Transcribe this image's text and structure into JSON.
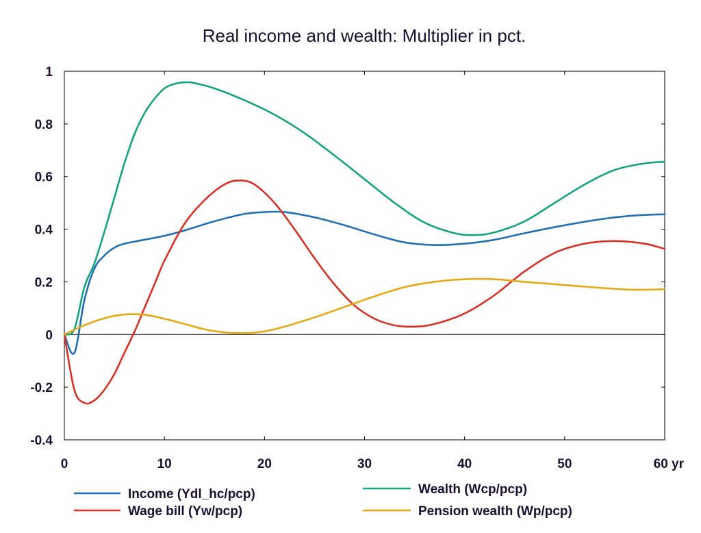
{
  "chart_data": {
    "type": "line",
    "title": "Real income and wealth: Multiplier in pct.",
    "xlabel": "",
    "ylabel": "",
    "xlim": [
      0,
      60
    ],
    "ylim": [
      -0.4,
      1.0
    ],
    "x_ticks": [
      0,
      10,
      20,
      30,
      40,
      50,
      60
    ],
    "x_tick_labels": [
      "0",
      "10",
      "20",
      "30",
      "40",
      "50",
      "60 yr"
    ],
    "y_ticks": [
      -0.4,
      -0.2,
      0,
      0.2,
      0.4,
      0.6,
      0.8,
      1.0
    ],
    "y_tick_labels": [
      "-0.4",
      "-0.2",
      "0",
      "0.2",
      "0.4",
      "0.6",
      "0.8",
      "1"
    ],
    "grid": false,
    "zero_line": true,
    "legend_position": "bottom",
    "series": [
      {
        "name": "Income (Ydl_hc/pcp)",
        "color": "#1f6fb2",
        "points": [
          [
            0,
            0
          ],
          [
            1,
            -0.07
          ],
          [
            2,
            0.13
          ],
          [
            3,
            0.25
          ],
          [
            4,
            0.3
          ],
          [
            5,
            0.33
          ],
          [
            6,
            0.345
          ],
          [
            8,
            0.36
          ],
          [
            10,
            0.375
          ],
          [
            12,
            0.395
          ],
          [
            15,
            0.43
          ],
          [
            18,
            0.458
          ],
          [
            20,
            0.465
          ],
          [
            22,
            0.465
          ],
          [
            25,
            0.445
          ],
          [
            28,
            0.415
          ],
          [
            31,
            0.38
          ],
          [
            34,
            0.35
          ],
          [
            37,
            0.34
          ],
          [
            40,
            0.345
          ],
          [
            43,
            0.36
          ],
          [
            46,
            0.385
          ],
          [
            50,
            0.415
          ],
          [
            54,
            0.44
          ],
          [
            57,
            0.452
          ],
          [
            60,
            0.457
          ]
        ]
      },
      {
        "name": "Wage bill (Yw/pcp)",
        "color": "#d93025",
        "points": [
          [
            0,
            0
          ],
          [
            1,
            -0.21
          ],
          [
            2,
            -0.26
          ],
          [
            3,
            -0.25
          ],
          [
            4,
            -0.21
          ],
          [
            5,
            -0.15
          ],
          [
            6,
            -0.07
          ],
          [
            7,
            0.01
          ],
          [
            8,
            0.1
          ],
          [
            9,
            0.19
          ],
          [
            10,
            0.28
          ],
          [
            12,
            0.42
          ],
          [
            14,
            0.51
          ],
          [
            16,
            0.57
          ],
          [
            17.5,
            0.585
          ],
          [
            19,
            0.57
          ],
          [
            21,
            0.5
          ],
          [
            23,
            0.4
          ],
          [
            25,
            0.29
          ],
          [
            27,
            0.19
          ],
          [
            29,
            0.11
          ],
          [
            31,
            0.06
          ],
          [
            33,
            0.035
          ],
          [
            35,
            0.03
          ],
          [
            37,
            0.04
          ],
          [
            40,
            0.08
          ],
          [
            43,
            0.15
          ],
          [
            46,
            0.24
          ],
          [
            49,
            0.31
          ],
          [
            52,
            0.345
          ],
          [
            55,
            0.355
          ],
          [
            58,
            0.345
          ],
          [
            60,
            0.325
          ]
        ]
      },
      {
        "name": "Wealth (Wcp/pcp)",
        "color": "#14a37f",
        "points": [
          [
            0,
            0
          ],
          [
            1,
            0.02
          ],
          [
            2,
            0.18
          ],
          [
            3,
            0.27
          ],
          [
            4,
            0.39
          ],
          [
            5,
            0.52
          ],
          [
            6,
            0.65
          ],
          [
            7,
            0.76
          ],
          [
            8,
            0.84
          ],
          [
            9,
            0.895
          ],
          [
            10,
            0.935
          ],
          [
            11,
            0.952
          ],
          [
            12,
            0.958
          ],
          [
            13,
            0.955
          ],
          [
            15,
            0.935
          ],
          [
            18,
            0.89
          ],
          [
            21,
            0.835
          ],
          [
            24,
            0.765
          ],
          [
            27,
            0.68
          ],
          [
            30,
            0.59
          ],
          [
            33,
            0.5
          ],
          [
            36,
            0.425
          ],
          [
            39,
            0.385
          ],
          [
            41,
            0.378
          ],
          [
            43,
            0.388
          ],
          [
            46,
            0.43
          ],
          [
            49,
            0.5
          ],
          [
            52,
            0.57
          ],
          [
            55,
            0.625
          ],
          [
            58,
            0.65
          ],
          [
            60,
            0.656
          ]
        ]
      },
      {
        "name": "Pension wealth (Wp/pcp)",
        "color": "#e5a812",
        "points": [
          [
            0,
            0
          ],
          [
            2,
            0.035
          ],
          [
            4,
            0.062
          ],
          [
            6,
            0.076
          ],
          [
            8,
            0.075
          ],
          [
            10,
            0.06
          ],
          [
            12,
            0.04
          ],
          [
            14,
            0.02
          ],
          [
            16,
            0.008
          ],
          [
            18,
            0.005
          ],
          [
            20,
            0.012
          ],
          [
            22,
            0.03
          ],
          [
            25,
            0.065
          ],
          [
            28,
            0.105
          ],
          [
            31,
            0.145
          ],
          [
            34,
            0.18
          ],
          [
            37,
            0.2
          ],
          [
            40,
            0.21
          ],
          [
            43,
            0.21
          ],
          [
            46,
            0.2
          ],
          [
            50,
            0.188
          ],
          [
            54,
            0.176
          ],
          [
            57,
            0.17
          ],
          [
            60,
            0.172
          ]
        ]
      }
    ]
  }
}
